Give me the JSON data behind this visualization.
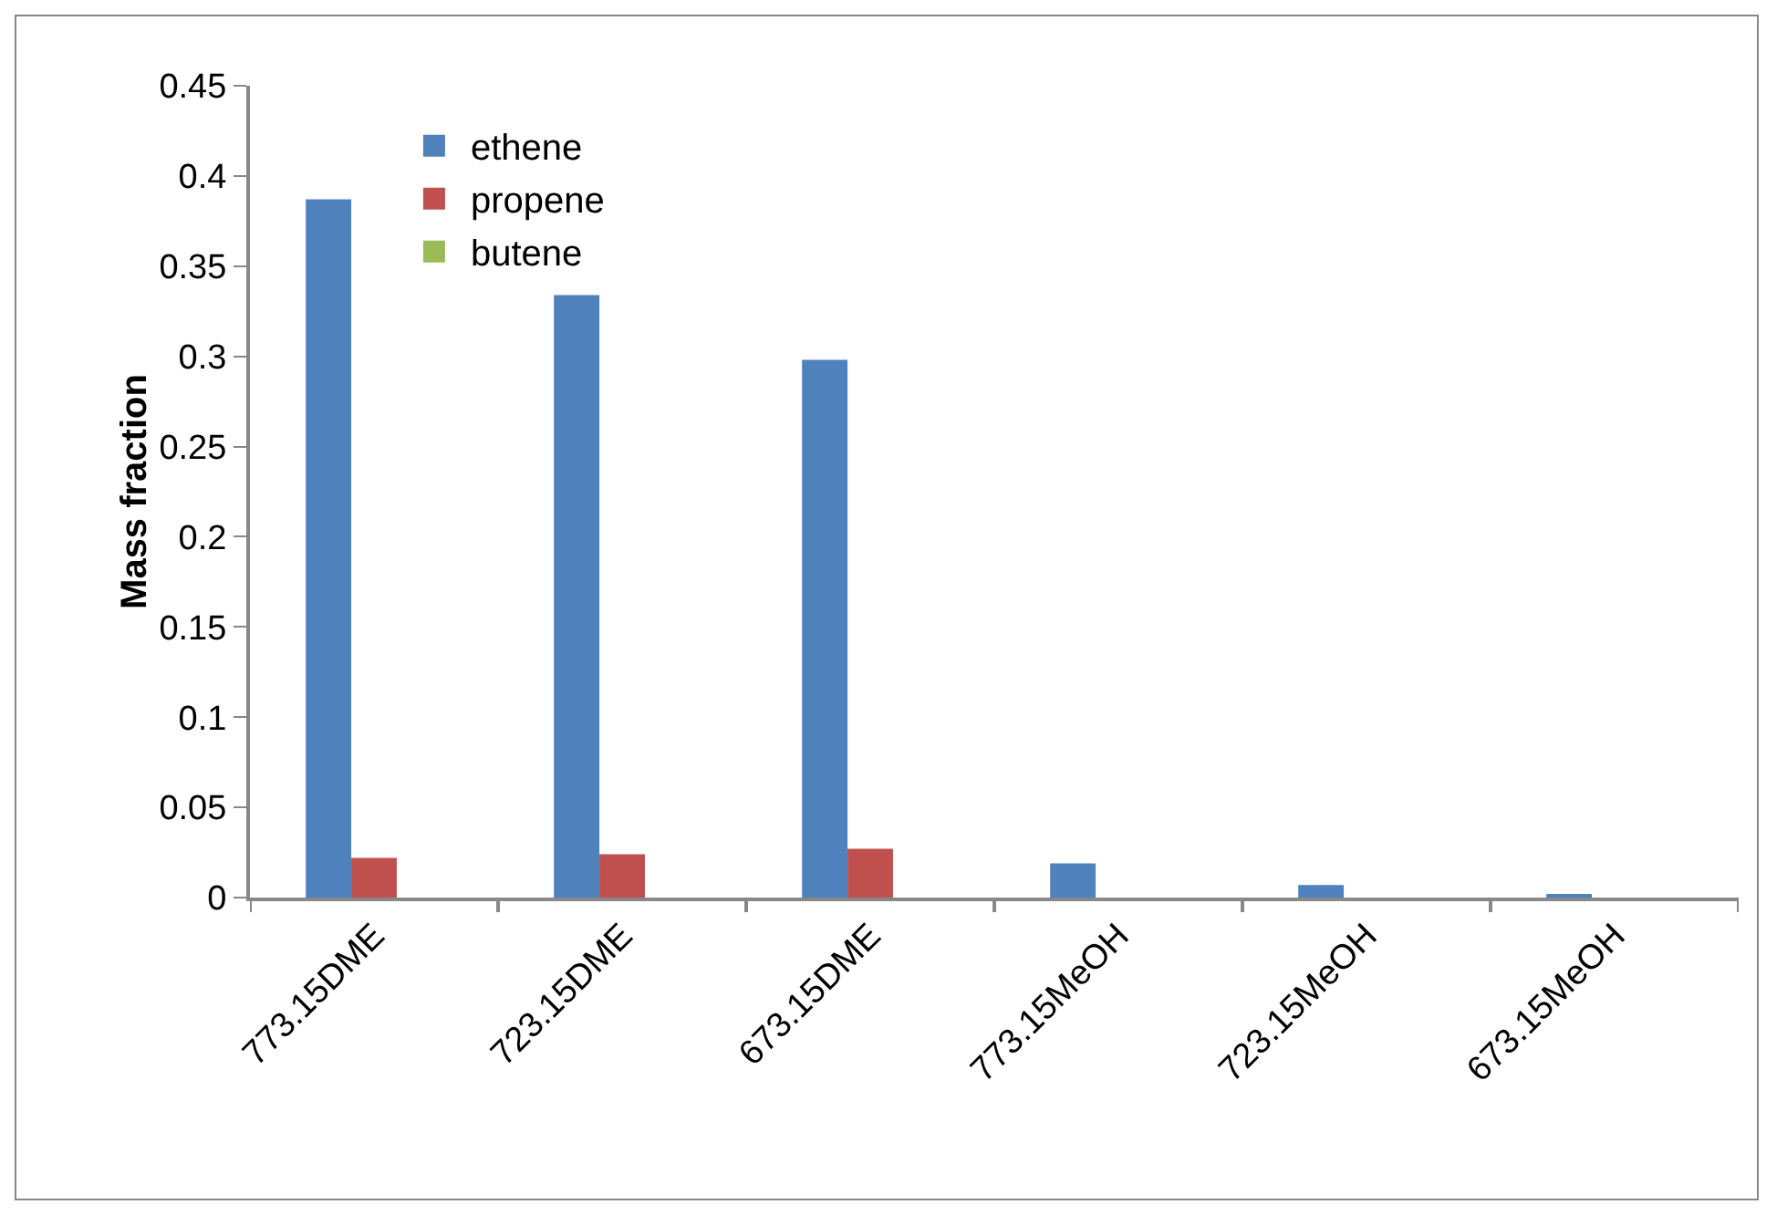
{
  "chart_data": {
    "type": "bar",
    "ylabel": "Mass fraction",
    "categories": [
      "773.15DME",
      "723.15DME",
      "673.15DME",
      "773.15MeOH",
      "723.15MeOH",
      "673.15MeOH"
    ],
    "series": [
      {
        "name": "ethene",
        "color": "#4f81bd",
        "values": [
          0.387,
          0.334,
          0.298,
          0.019,
          0.007,
          0.002
        ]
      },
      {
        "name": "propene",
        "color": "#c0504d",
        "values": [
          0.022,
          0.024,
          0.027,
          0,
          0,
          0
        ]
      },
      {
        "name": "butene",
        "color": "#9bbb59",
        "values": [
          0,
          0,
          0,
          0,
          0,
          0
        ]
      }
    ],
    "ylim": [
      0,
      0.45
    ],
    "yticks": [
      0,
      0.05,
      0.1,
      0.15,
      0.2,
      0.25,
      0.3,
      0.35,
      0.4,
      0.45
    ],
    "grid": false,
    "legend": "top"
  }
}
